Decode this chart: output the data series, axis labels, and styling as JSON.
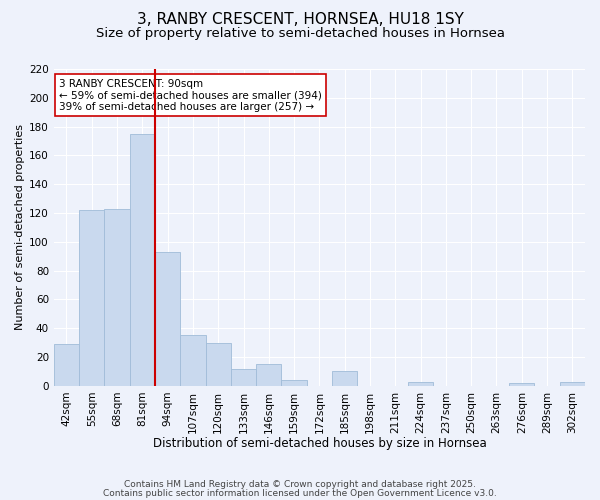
{
  "title": "3, RANBY CRESCENT, HORNSEA, HU18 1SY",
  "subtitle": "Size of property relative to semi-detached houses in Hornsea",
  "xlabel": "Distribution of semi-detached houses by size in Hornsea",
  "ylabel": "Number of semi-detached properties",
  "bar_labels": [
    "42sqm",
    "55sqm",
    "68sqm",
    "81sqm",
    "94sqm",
    "107sqm",
    "120sqm",
    "133sqm",
    "146sqm",
    "159sqm",
    "172sqm",
    "185sqm",
    "198sqm",
    "211sqm",
    "224sqm",
    "237sqm",
    "250sqm",
    "263sqm",
    "276sqm",
    "289sqm",
    "302sqm"
  ],
  "bar_values": [
    29,
    122,
    123,
    175,
    93,
    35,
    30,
    12,
    15,
    4,
    0,
    10,
    0,
    0,
    3,
    0,
    0,
    0,
    2,
    0,
    3
  ],
  "bar_color": "#c9d9ee",
  "bar_edge_color": "#a0bcd8",
  "vline_x_idx": 4,
  "vline_color": "#cc0000",
  "annotation_line1": "3 RANBY CRESCENT: 90sqm",
  "annotation_line2": "← 59% of semi-detached houses are smaller (394)",
  "annotation_line3": "39% of semi-detached houses are larger (257) →",
  "annotation_box_color": "#ffffff",
  "annotation_box_edge": "#cc0000",
  "ylim": [
    0,
    220
  ],
  "yticks": [
    0,
    20,
    40,
    60,
    80,
    100,
    120,
    140,
    160,
    180,
    200,
    220
  ],
  "background_color": "#eef2fb",
  "grid_color": "#ffffff",
  "footer_line1": "Contains HM Land Registry data © Crown copyright and database right 2025.",
  "footer_line2": "Contains public sector information licensed under the Open Government Licence v3.0.",
  "title_fontsize": 11,
  "subtitle_fontsize": 9.5,
  "xlabel_fontsize": 8.5,
  "ylabel_fontsize": 8,
  "tick_fontsize": 7.5,
  "annotation_fontsize": 7.5,
  "footer_fontsize": 6.5
}
